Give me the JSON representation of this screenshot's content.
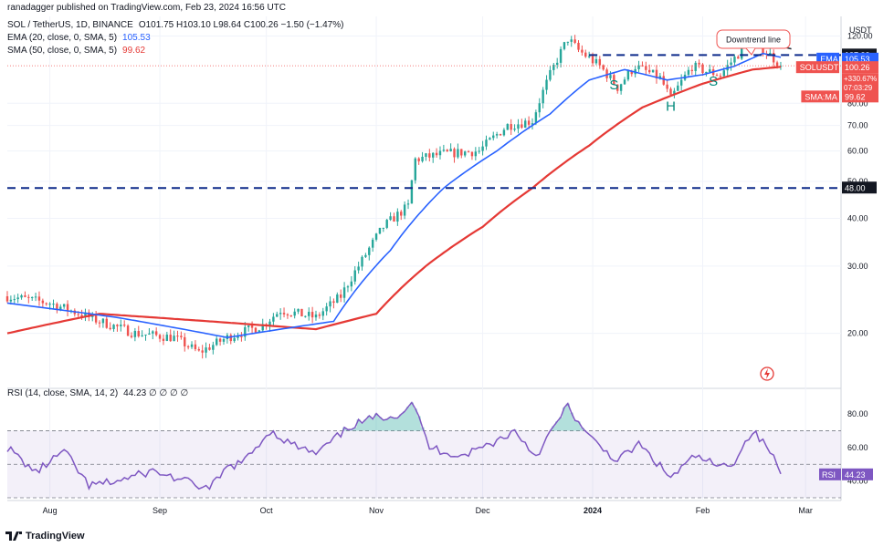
{
  "header": {
    "published": "ranadagger published on TradingView.com, Feb 23, 2024 16:56 UTC",
    "symbol_line": "SOL / TetherUS, 1D, BINANCE",
    "ohlc": "O101.75 H103.10 L98.64 C100.26 −1.50 (−1.47%)",
    "ema_label": "EMA (20, close, 0, SMA, 5)",
    "ema_value": "105.53",
    "sma_label": "SMA (50, close, 0, SMA, 5)",
    "sma_value": "99.62",
    "rsi_label": "RSI (14, close, SMA, 14, 2)",
    "rsi_values": "44.23  ∅  ∅  ∅  ∅"
  },
  "footer": {
    "brand": "TradingView"
  },
  "colors": {
    "ema": "#2962ff",
    "sma": "#e53935",
    "rsi": "#7e57c2",
    "up": "#26a69a",
    "down": "#ef5350",
    "level": "#0d2a8a"
  },
  "chart_data": {
    "type": "candlestick",
    "currency": "USDT",
    "x_labels": [
      "Aug",
      "Sep",
      "Oct",
      "Nov",
      "Dec",
      "2024",
      "Feb",
      "Mar"
    ],
    "y_ticks": [
      "120.00",
      "80.00",
      "70.00",
      "60.00",
      "50.00",
      "40.00",
      "30.00",
      "20.00"
    ],
    "y_scale": "log",
    "ylim": [
      15,
      135
    ],
    "levels": [
      {
        "value": 107.0,
        "label": "107.00"
      },
      {
        "value": 48.0,
        "label": "48.00"
      }
    ],
    "price_tags": {
      "ema": {
        "name": "EMA",
        "value": "105.53"
      },
      "last": {
        "name": "SOLUSDT",
        "value": "100.26",
        "change": "+330.67%",
        "timer": "07:03:29"
      },
      "sma": {
        "name": "SMA:MA",
        "value": "99.62"
      }
    },
    "annotations": [
      {
        "text": "Downtrend line"
      },
      {
        "text": "S"
      },
      {
        "text": "H"
      },
      {
        "text": "S"
      }
    ],
    "close_anchors": [
      [
        "2023-07-20",
        25
      ],
      [
        "2023-08-01",
        24
      ],
      [
        "2023-08-15",
        21.5
      ],
      [
        "2023-08-25",
        20
      ],
      [
        "2023-09-05",
        19.5
      ],
      [
        "2023-09-12",
        17.8
      ],
      [
        "2023-09-20",
        19.5
      ],
      [
        "2023-09-30",
        21
      ],
      [
        "2023-10-05",
        23
      ],
      [
        "2023-10-15",
        22
      ],
      [
        "2023-10-22",
        25
      ],
      [
        "2023-10-28",
        31
      ],
      [
        "2023-11-03",
        38
      ],
      [
        "2023-11-10",
        43
      ],
      [
        "2023-11-12",
        57
      ],
      [
        "2023-11-20",
        59
      ],
      [
        "2023-11-30",
        60
      ],
      [
        "2023-12-08",
        70
      ],
      [
        "2023-12-15",
        72
      ],
      [
        "2023-12-20",
        95
      ],
      [
        "2023-12-25",
        118
      ],
      [
        "2023-12-28",
        110
      ],
      [
        "2024-01-03",
        100
      ],
      [
        "2024-01-08",
        88
      ],
      [
        "2024-01-13",
        100
      ],
      [
        "2024-01-20",
        93
      ],
      [
        "2024-01-23",
        82
      ],
      [
        "2024-01-29",
        100
      ],
      [
        "2024-02-02",
        97
      ],
      [
        "2024-02-06",
        95
      ],
      [
        "2024-02-12",
        110
      ],
      [
        "2024-02-16",
        115
      ],
      [
        "2024-02-20",
        107
      ],
      [
        "2024-02-23",
        100.26
      ]
    ],
    "ema": [
      [
        "2023-07-20",
        24
      ],
      [
        "2023-08-20",
        22
      ],
      [
        "2023-09-20",
        19.5
      ],
      [
        "2023-10-20",
        21.5
      ],
      [
        "2023-11-05",
        33
      ],
      [
        "2023-11-20",
        48
      ],
      [
        "2023-12-05",
        60
      ],
      [
        "2023-12-20",
        75
      ],
      [
        "2023-12-31",
        92
      ],
      [
        "2024-01-10",
        98
      ],
      [
        "2024-01-22",
        92
      ],
      [
        "2024-02-01",
        95
      ],
      [
        "2024-02-10",
        100
      ],
      [
        "2024-02-18",
        108
      ],
      [
        "2024-02-23",
        105.53
      ]
    ],
    "sma": [
      [
        "2023-07-20",
        20
      ],
      [
        "2023-08-15",
        22.5
      ],
      [
        "2023-09-15",
        21.5
      ],
      [
        "2023-10-15",
        20.5
      ],
      [
        "2023-11-01",
        22.5
      ],
      [
        "2023-11-15",
        30
      ],
      [
        "2023-12-01",
        38
      ],
      [
        "2023-12-15",
        48
      ],
      [
        "2023-12-31",
        62
      ],
      [
        "2024-01-15",
        78
      ],
      [
        "2024-02-01",
        90
      ],
      [
        "2024-02-15",
        98
      ],
      [
        "2024-02-23",
        99.62
      ]
    ],
    "rsi": {
      "ylim": [
        30,
        92
      ],
      "y_ticks": [
        "80.00",
        "60.00",
        "40.00"
      ],
      "bands": [
        70,
        50,
        30
      ],
      "current": "44.23",
      "anchors": [
        [
          "2023-07-20",
          60
        ],
        [
          "2023-07-28",
          45
        ],
        [
          "2023-08-05",
          58
        ],
        [
          "2023-08-12",
          37
        ],
        [
          "2023-08-20",
          40
        ],
        [
          "2023-08-30",
          46
        ],
        [
          "2023-09-08",
          40
        ],
        [
          "2023-09-15",
          35
        ],
        [
          "2023-09-20",
          48
        ],
        [
          "2023-09-25",
          52
        ],
        [
          "2023-10-02",
          70
        ],
        [
          "2023-10-08",
          62
        ],
        [
          "2023-10-15",
          56
        ],
        [
          "2023-10-25",
          73
        ],
        [
          "2023-11-01",
          78
        ],
        [
          "2023-11-08",
          80
        ],
        [
          "2023-11-11",
          88
        ],
        [
          "2023-11-16",
          60
        ],
        [
          "2023-11-25",
          55
        ],
        [
          "2023-12-05",
          64
        ],
        [
          "2023-12-10",
          70
        ],
        [
          "2023-12-16",
          55
        ],
        [
          "2023-12-25",
          85
        ],
        [
          "2023-12-30",
          68
        ],
        [
          "2024-01-08",
          52
        ],
        [
          "2024-01-14",
          62
        ],
        [
          "2024-01-23",
          42
        ],
        [
          "2024-01-30",
          55
        ],
        [
          "2024-02-06",
          48
        ],
        [
          "2024-02-10",
          52
        ],
        [
          "2024-02-15",
          70
        ],
        [
          "2024-02-20",
          58
        ],
        [
          "2024-02-23",
          44.23
        ]
      ]
    }
  }
}
